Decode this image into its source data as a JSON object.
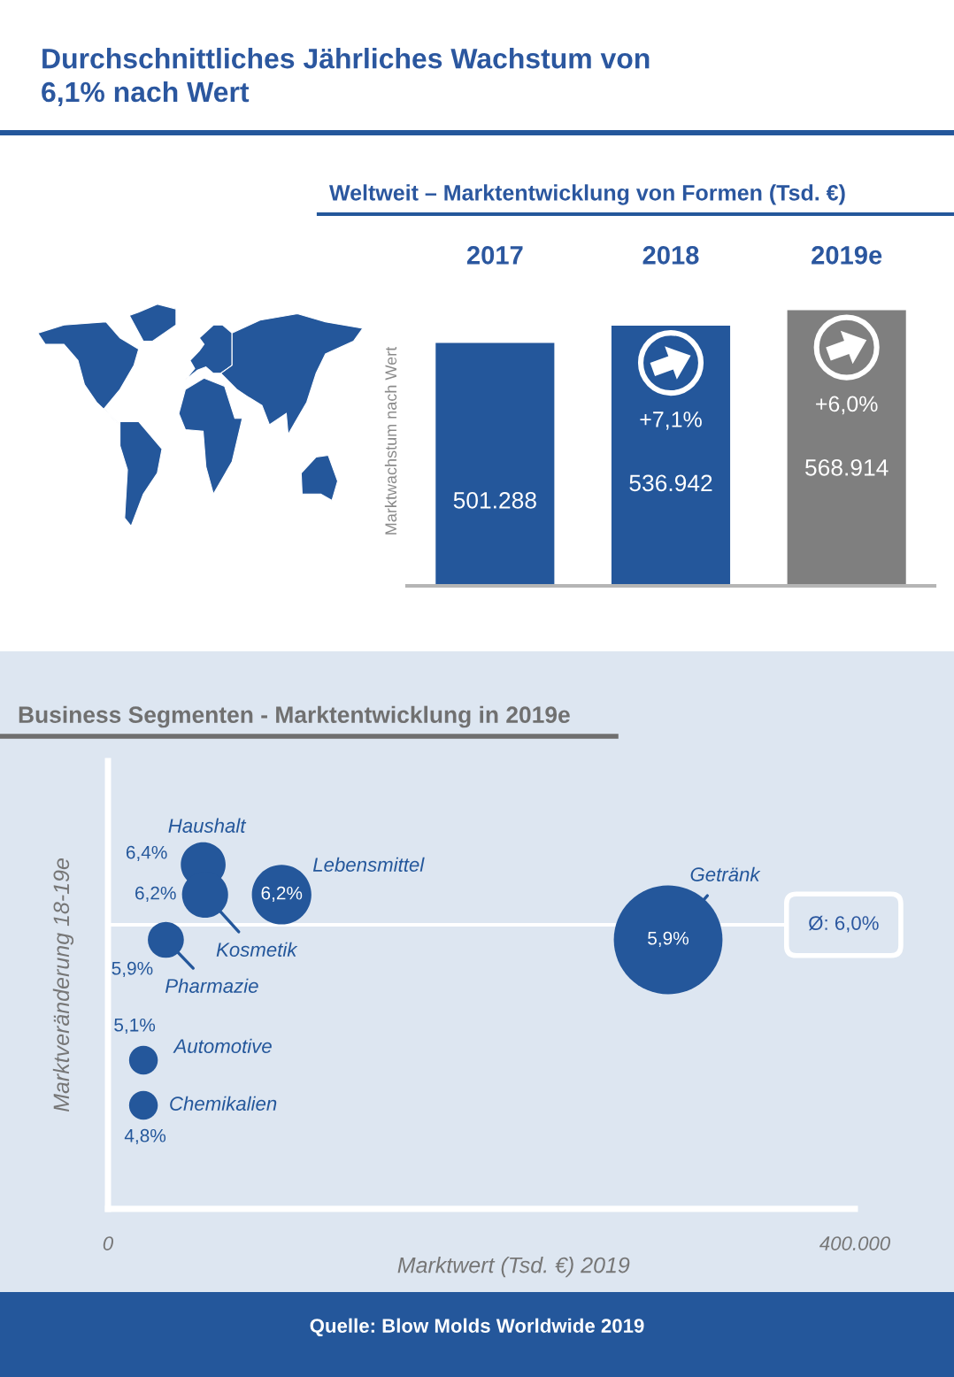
{
  "chart_data": [
    {
      "type": "bar",
      "title": "Durchschnittliches Jährliches Wachstum von\n6,1% nach Wert",
      "subtitle": "Weltweit – Marktentwicklung von Formen (Tsd. €)",
      "ylabel": "Marktwachstum nach Wert",
      "categories": [
        "2017",
        "2018",
        "2019e"
      ],
      "values": [
        501288,
        536942,
        568914
      ],
      "colors": [
        "#24579b",
        "#24579b",
        "#7f7f7f"
      ],
      "value_labels": [
        "501.288",
        "536.942",
        "568.914"
      ],
      "tick_labels": "x",
      "annotations": [
        "+7,1%",
        "+6,0%"
      ]
    },
    {
      "type": "bubble",
      "title": "Business Segmenten - Marktentwicklung in 2019e",
      "xlabel": "Marktwert (Tsd. €) 2019",
      "ylabel": "Marktveränderung 18-19e",
      "xlim": [
        0,
        400000
      ],
      "xticks": [
        {
          "value": 0,
          "label": "0"
        },
        {
          "value": 400000,
          "label": "400.000"
        }
      ],
      "tick_labels": "x",
      "x": [
        51000,
        52000,
        93000,
        31000,
        19000,
        19000,
        300000
      ],
      "values": [
        6.4,
        6.2,
        6.2,
        5.9,
        5.1,
        4.8,
        5.9
      ],
      "sizes": [
        0.17,
        0.18,
        0.3,
        0.11,
        0.07,
        0.07,
        1
      ],
      "value_labels": [
        "6,4%",
        "6,2%",
        "6,2%",
        "5,9%",
        "5,1%",
        "4,8%",
        "5,9%"
      ],
      "color": "#24579b",
      "ref_lines": [
        {
          "axis": "y",
          "value": 6.0,
          "label": "Ø: 6,0%",
          "color": "#ffffff"
        }
      ],
      "annotations": [
        {
          "text": "Haushalt",
          "x": 51000,
          "y": 6.4
        },
        {
          "text": "Kosmetik",
          "x": 52000,
          "y": 6.2
        },
        {
          "text": "Lebensmittel",
          "x": 93000,
          "y": 6.2
        },
        {
          "text": "Pharmazie",
          "x": 31000,
          "y": 5.9
        },
        {
          "text": "Automotive",
          "x": 19000,
          "y": 5.1
        },
        {
          "text": "Chemikalien",
          "x": 19000,
          "y": 4.8
        },
        {
          "text": "Getränk",
          "x": 300000,
          "y": 5.9
        },
        "Quelle: Blow Molds Worldwide 2019"
      ]
    }
  ]
}
